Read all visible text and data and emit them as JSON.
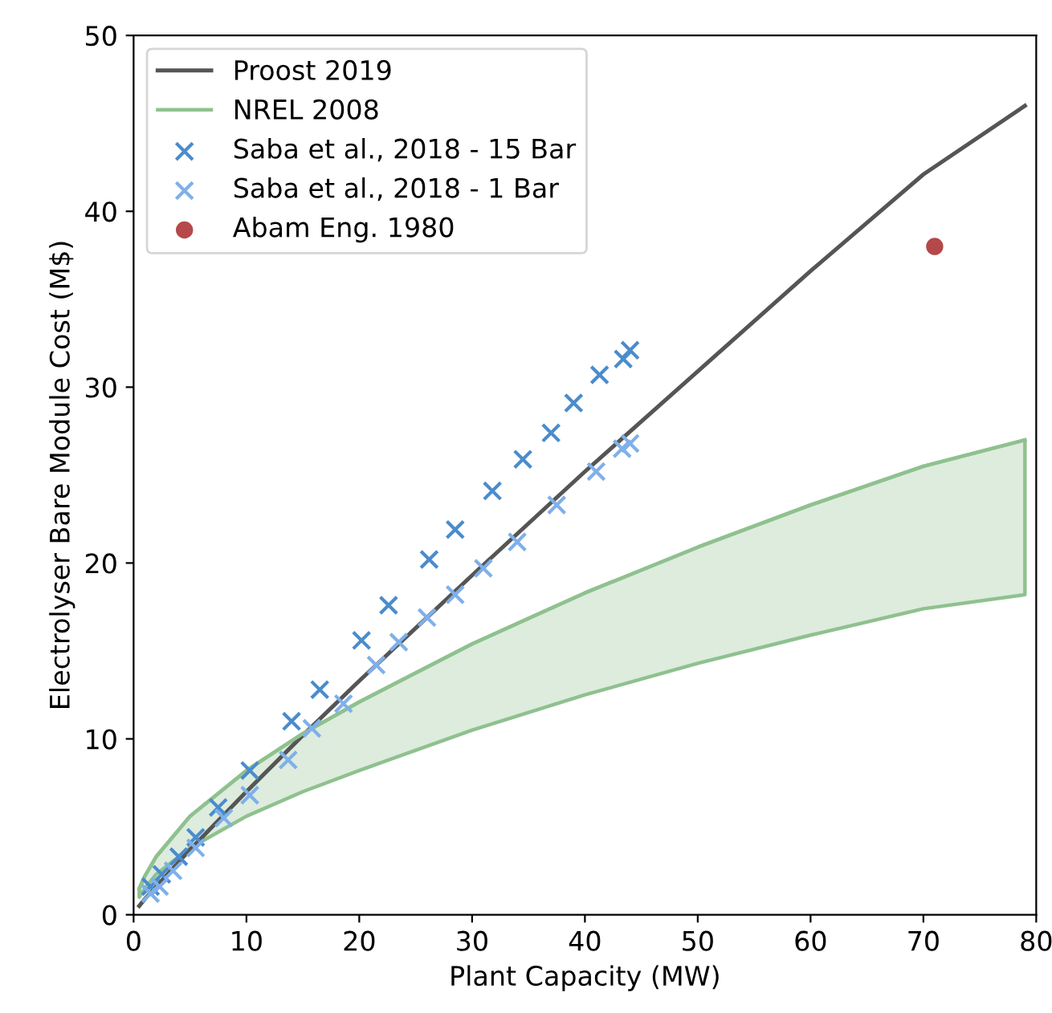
{
  "chart_data": {
    "type": "scatter",
    "xlabel": "Plant Capacity (MW)",
    "ylabel": "Electrolyser Bare Module Cost (M$)",
    "xlim": [
      0,
      80
    ],
    "ylim": [
      0,
      50
    ],
    "xticks": [
      0,
      10,
      20,
      30,
      40,
      50,
      60,
      70,
      80
    ],
    "yticks": [
      0,
      10,
      20,
      30,
      40,
      50
    ],
    "grid": false,
    "legend": "top left",
    "series": [
      {
        "name": "Proost 2019",
        "type": "line",
        "color": "#555555",
        "x": [
          0.5,
          1,
          2,
          5,
          10,
          15,
          20,
          30,
          40,
          50,
          60,
          70,
          79
        ],
        "values": [
          0.5,
          0.9,
          1.6,
          3.7,
          7.0,
          10.2,
          13.3,
          19.3,
          25.2,
          30.9,
          36.6,
          42.1,
          46
        ]
      },
      {
        "name": "NREL 2008",
        "type": "line",
        "upper": [
          1.5,
          2.2,
          3.3,
          5.6,
          8.2,
          10.3,
          12.1,
          15.4,
          18.3,
          20.9,
          23.3,
          25.5,
          27
        ],
        "color": "#8fc18f",
        "x": [
          0.5,
          1,
          2,
          5,
          10,
          15,
          20,
          30,
          40,
          50,
          60,
          70,
          79
        ],
        "lower": [
          1.0,
          1.5,
          2.3,
          3.8,
          5.6,
          7.0,
          8.2,
          10.5,
          12.5,
          14.3,
          15.9,
          17.4,
          18.2
        ],
        "values": [
          1.5,
          2.2,
          3.3,
          5.6,
          8.2,
          10.3,
          12.1,
          15.4,
          18.3,
          20.9,
          23.3,
          25.5,
          27
        ]
      },
      {
        "name": "Saba et al., 2018 - 15 Bar",
        "marker": "cross",
        "color": "#4a8ccc",
        "x": [
          1.5,
          2.5,
          4,
          5.5,
          7.5,
          10.3,
          14,
          16.5,
          20.2,
          22.6,
          26.2,
          28.5,
          31.8,
          34.5,
          37,
          39,
          41.3,
          43.4,
          44
        ],
        "values": [
          1.6,
          2.3,
          3.3,
          4.4,
          6.1,
          8.2,
          11,
          12.8,
          15.6,
          17.6,
          20.2,
          21.9,
          24.1,
          25.9,
          27.4,
          29.1,
          30.7,
          31.6,
          32.1
        ]
      },
      {
        "name": "Saba et al., 2018 - 1 Bar",
        "marker": "cross",
        "color": "#7fb0ea",
        "x": [
          1.5,
          2.3,
          3.5,
          5.5,
          8,
          10.3,
          13.7,
          15.8,
          18.6,
          21.5,
          23.5,
          26,
          28.5,
          31,
          34,
          37.5,
          41,
          43.3,
          44
        ],
        "values": [
          1.2,
          1.6,
          2.5,
          3.8,
          5.5,
          6.8,
          8.8,
          10.6,
          12,
          14.2,
          15.5,
          16.9,
          18.2,
          19.7,
          21.2,
          23.3,
          25.2,
          26.5,
          26.8
        ]
      },
      {
        "name": "Abam Eng. 1980",
        "marker": "circle",
        "color": "#b5484a",
        "x": [
          71
        ],
        "values": [
          38
        ]
      }
    ]
  }
}
